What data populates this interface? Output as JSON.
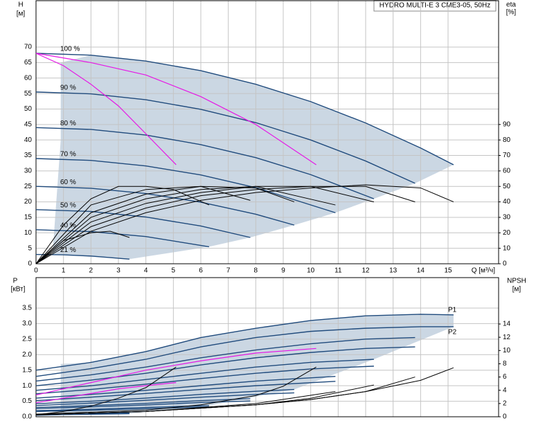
{
  "chart_data": [
    {
      "type": "line",
      "title": "HYDRO MULTI-E 3 CME3-05, 50Hz",
      "ylabel": "H",
      "yunit": "[м]",
      "y2label": "eta",
      "y2unit": "[%]",
      "xlabel": "Q [м³/ч]",
      "xlim": [
        0,
        16.84
      ],
      "ylim": [
        0,
        85
      ],
      "y2lim": [
        0,
        170
      ],
      "xticks": [
        0,
        1,
        2,
        3,
        4,
        5,
        6,
        7,
        8,
        9,
        10,
        11,
        12,
        13,
        14,
        15
      ],
      "yticks": [
        0,
        5,
        10,
        15,
        20,
        25,
        30,
        35,
        40,
        45,
        50,
        55,
        60,
        65,
        70
      ],
      "y2ticks": [
        0,
        10,
        20,
        30,
        40,
        50,
        60,
        70,
        80,
        90
      ],
      "grid": true,
      "area": {
        "color": "#cbd7e3",
        "x": [
          0.9,
          2,
          4,
          6,
          8,
          10,
          12,
          14,
          15.2,
          13.8,
          12.3,
          10.9,
          9.4,
          7.8,
          6.3,
          3.4,
          0.6,
          0.9
        ],
        "values": [
          65,
          67.4,
          65.5,
          62.4,
          58,
          52.4,
          45.5,
          37.4,
          32,
          26,
          21,
          16.5,
          12.5,
          8.5,
          5.5,
          1.5,
          3,
          40
        ]
      },
      "series": [
        {
          "name": "100 %",
          "label_pos": "start",
          "color": "#1f4a7c",
          "x": [
            0,
            2,
            4,
            6,
            8,
            10,
            12,
            14,
            15.2
          ],
          "values": [
            68,
            67.4,
            65.5,
            62.4,
            58,
            52.4,
            45.5,
            37.4,
            32
          ]
        },
        {
          "name": "90 %",
          "label_pos": "start",
          "color": "#1f4a7c",
          "x": [
            0,
            2,
            4,
            6,
            8,
            10,
            12,
            13.8
          ],
          "values": [
            55.5,
            54.9,
            53,
            49.9,
            45.6,
            40,
            33.2,
            26
          ]
        },
        {
          "name": "80 %",
          "label_pos": "start",
          "color": "#1f4a7c",
          "x": [
            0,
            2,
            4,
            6,
            8,
            10,
            12.3
          ],
          "values": [
            44,
            43.4,
            41.6,
            38.5,
            34.3,
            28.8,
            21
          ]
        },
        {
          "name": "70 %",
          "label_pos": "start",
          "color": "#1f4a7c",
          "x": [
            0,
            2,
            4,
            6,
            8,
            10.9
          ],
          "values": [
            34,
            33.4,
            31.6,
            28.7,
            24.6,
            16.5
          ]
        },
        {
          "name": "60 %",
          "label_pos": "start",
          "color": "#1f4a7c",
          "x": [
            0,
            2,
            4,
            6,
            8,
            9.4
          ],
          "values": [
            25,
            24.4,
            22.7,
            19.9,
            16,
            12.5
          ]
        },
        {
          "name": "50 %",
          "label_pos": "start",
          "color": "#1f4a7c",
          "x": [
            0,
            2,
            4,
            6,
            7.8
          ],
          "values": [
            17.5,
            16.9,
            15.1,
            12.2,
            8.5
          ]
        },
        {
          "name": "40 %",
          "label_pos": "start",
          "color": "#1f4a7c",
          "x": [
            0,
            2,
            4,
            6.3
          ],
          "values": [
            11,
            10.4,
            8.8,
            5.5
          ]
        },
        {
          "name": "21 %",
          "label_pos": "start",
          "color": "#1f4a7c",
          "x": [
            0,
            1,
            2,
            3.4
          ],
          "values": [
            3,
            2.9,
            2.5,
            1.5
          ]
        },
        {
          "axis": "y2",
          "color": "#000000",
          "x": [
            0,
            2,
            4,
            6,
            8,
            10,
            12,
            14,
            15.2
          ],
          "values": [
            0,
            21,
            33,
            41,
            46,
            49,
            51,
            49,
            40
          ]
        },
        {
          "axis": "y2",
          "color": "#000000",
          "x": [
            0,
            2,
            4,
            6,
            8,
            10,
            12,
            13.8
          ],
          "values": [
            0,
            24,
            36,
            44,
            48,
            50,
            50,
            40
          ]
        },
        {
          "axis": "y2",
          "color": "#000000",
          "x": [
            0,
            2,
            4,
            6,
            8,
            10,
            12.3
          ],
          "values": [
            0,
            27,
            39,
            46,
            50,
            50,
            40
          ]
        },
        {
          "axis": "y2",
          "color": "#000000",
          "x": [
            0,
            2,
            4,
            6,
            8,
            10.9
          ],
          "values": [
            0,
            30,
            42,
            48,
            50,
            38
          ]
        },
        {
          "axis": "y2",
          "color": "#000000",
          "x": [
            0,
            2,
            4,
            6,
            8,
            9.4
          ],
          "values": [
            0,
            33,
            45,
            50,
            49,
            40
          ]
        },
        {
          "axis": "y2",
          "color": "#000000",
          "x": [
            0,
            2,
            4,
            6,
            7.8
          ],
          "values": [
            0,
            38,
            48,
            50,
            41
          ]
        },
        {
          "axis": "y2",
          "color": "#000000",
          "x": [
            0,
            1,
            2,
            3,
            4,
            5,
            6.3
          ],
          "values": [
            0,
            25,
            42,
            50,
            50,
            48,
            38
          ]
        },
        {
          "axis": "y2",
          "color": "#000000",
          "x": [
            0,
            1,
            2,
            2.7,
            3.4
          ],
          "values": [
            0,
            15,
            20,
            21,
            17
          ]
        },
        {
          "color": "#e617e6",
          "x": [
            0,
            1,
            2,
            3,
            4,
            5.1
          ],
          "values": [
            68,
            64,
            58,
            51,
            42,
            32
          ]
        },
        {
          "color": "#e617e6",
          "x": [
            0,
            2,
            4,
            6,
            8,
            10.2
          ],
          "values": [
            68,
            65,
            61,
            54,
            45,
            32
          ]
        }
      ]
    },
    {
      "type": "line",
      "ylabel": "P",
      "yunit": "[кВт]",
      "y2label": "NPSH",
      "y2unit": "[м]",
      "xlim": [
        0,
        16.84
      ],
      "ylim": [
        0,
        4.48
      ],
      "y2lim": [
        0,
        21
      ],
      "yticks": [
        {
          "value": 0,
          "label": "0.0"
        },
        0.5,
        {
          "value": 1,
          "label": "1.0"
        },
        1.5,
        {
          "value": 2,
          "label": "2.0"
        },
        2.5,
        {
          "value": 3,
          "label": "3.0"
        },
        3.5
      ],
      "y2ticks": [
        0,
        2,
        4,
        6,
        8,
        10,
        12,
        14
      ],
      "grid": true,
      "area": {
        "color": "#cbd7e3",
        "x": [
          0.9,
          2,
          4,
          6,
          8,
          10,
          12,
          14,
          15.2,
          15.2,
          12.3,
          9.4,
          6.3,
          3.4,
          0.9
        ],
        "values": [
          1.7,
          1.75,
          2.1,
          2.55,
          2.85,
          3.1,
          3.25,
          3.3,
          3.28,
          2.9,
          1.85,
          0.88,
          0.36,
          0.1,
          0.1
        ]
      },
      "series": [
        {
          "name": "P1",
          "label_pos": "above",
          "color": "#1f4a7c",
          "x": [
            0,
            2,
            4,
            6,
            8,
            10,
            12,
            14,
            15.2
          ],
          "values": [
            1.5,
            1.75,
            2.1,
            2.55,
            2.85,
            3.1,
            3.25,
            3.3,
            3.28
          ]
        },
        {
          "color": "#1f4a7c",
          "x": [
            0,
            2,
            4,
            6,
            8,
            10,
            12,
            13.8
          ],
          "values": [
            1.15,
            1.35,
            1.6,
            1.9,
            2.15,
            2.35,
            2.5,
            2.55
          ]
        },
        {
          "color": "#1f4a7c",
          "x": [
            0,
            2,
            4,
            6,
            8,
            10,
            12.3
          ],
          "values": [
            0.85,
            1,
            1.2,
            1.4,
            1.6,
            1.75,
            1.85
          ]
        },
        {
          "color": "#1f4a7c",
          "x": [
            0,
            2,
            4,
            6,
            8,
            10.9
          ],
          "values": [
            0.6,
            0.72,
            0.85,
            1,
            1.15,
            1.3
          ]
        },
        {
          "color": "#1f4a7c",
          "x": [
            0,
            2,
            4,
            6,
            8,
            9.4
          ],
          "values": [
            0.42,
            0.5,
            0.6,
            0.72,
            0.82,
            0.88
          ]
        },
        {
          "color": "#1f4a7c",
          "x": [
            0,
            2,
            4,
            6,
            7.8
          ],
          "values": [
            0.3,
            0.36,
            0.43,
            0.52,
            0.58
          ]
        },
        {
          "color": "#1f4a7c",
          "x": [
            0,
            2,
            4,
            6.3
          ],
          "values": [
            0.2,
            0.24,
            0.3,
            0.36
          ]
        },
        {
          "color": "#1f4a7c",
          "x": [
            0,
            1,
            2,
            3.4
          ],
          "values": [
            0.07,
            0.08,
            0.1,
            0.12
          ]
        },
        {
          "name": "P2",
          "label_pos": "below",
          "color": "#1f4a7c",
          "x": [
            0,
            2,
            4,
            6,
            8,
            10,
            12,
            14,
            15.2
          ],
          "values": [
            1.3,
            1.55,
            1.85,
            2.25,
            2.55,
            2.75,
            2.85,
            2.9,
            2.9
          ]
        },
        {
          "color": "#1f4a7c",
          "x": [
            0,
            2,
            4,
            6,
            8,
            10,
            12,
            13.8
          ],
          "values": [
            1,
            1.18,
            1.4,
            1.67,
            1.9,
            2.07,
            2.2,
            2.25
          ]
        },
        {
          "color": "#1f4a7c",
          "x": [
            0,
            2,
            4,
            6,
            8,
            10,
            12.3
          ],
          "values": [
            0.74,
            0.88,
            1.05,
            1.23,
            1.4,
            1.54,
            1.63
          ]
        },
        {
          "color": "#1f4a7c",
          "x": [
            0,
            2,
            4,
            6,
            8,
            10.9
          ],
          "values": [
            0.52,
            0.63,
            0.75,
            0.88,
            1,
            1.14
          ]
        },
        {
          "color": "#1f4a7c",
          "x": [
            0,
            2,
            4,
            6,
            8,
            9.4
          ],
          "values": [
            0.36,
            0.44,
            0.53,
            0.63,
            0.72,
            0.77
          ]
        },
        {
          "color": "#1f4a7c",
          "x": [
            0,
            2,
            4,
            6,
            7.8
          ],
          "values": [
            0.26,
            0.32,
            0.38,
            0.46,
            0.51
          ]
        },
        {
          "color": "#1f4a7c",
          "x": [
            0,
            2,
            4,
            6.3
          ],
          "values": [
            0.17,
            0.21,
            0.26,
            0.32
          ]
        },
        {
          "color": "#1f4a7c",
          "x": [
            0,
            1,
            2,
            3.4
          ],
          "values": [
            0.05,
            0.07,
            0.08,
            0.1
          ]
        },
        {
          "color": "#e617e6",
          "x": [
            0,
            1,
            2,
            3,
            4,
            5.1
          ],
          "values": [
            0.45,
            0.6,
            0.75,
            0.9,
            1,
            1.1
          ]
        },
        {
          "color": "#e617e6",
          "x": [
            0,
            2,
            4,
            6,
            8,
            10.2
          ],
          "values": [
            0.7,
            1.1,
            1.5,
            1.8,
            2.05,
            2.2
          ]
        },
        {
          "axis": "y2",
          "color": "#000000",
          "x": [
            0,
            4,
            8,
            10,
            12,
            14,
            15.2
          ],
          "values": [
            0.3,
            0.8,
            1.8,
            2.6,
            3.8,
            5.5,
            7.4
          ]
        },
        {
          "axis": "y2",
          "color": "#000000",
          "x": [
            0,
            4,
            8,
            10,
            12,
            13.8
          ],
          "values": [
            0.3,
            0.8,
            1.8,
            2.6,
            3.8,
            6
          ]
        },
        {
          "axis": "y2",
          "color": "#000000",
          "x": [
            0,
            4,
            8,
            10,
            12.3
          ],
          "values": [
            0.3,
            0.8,
            1.8,
            2.8,
            4.8
          ]
        },
        {
          "axis": "y2",
          "color": "#000000",
          "x": [
            0,
            4,
            8,
            10.9
          ],
          "values": [
            0.3,
            0.8,
            2,
            3.8
          ]
        },
        {
          "axis": "y2",
          "color": "#000000",
          "x": [
            0,
            4,
            6,
            8,
            9,
            10.2
          ],
          "values": [
            0.4,
            1,
            1.8,
            3.2,
            4.6,
            7.5
          ]
        },
        {
          "axis": "y2",
          "color": "#000000",
          "x": [
            0,
            1,
            2,
            3,
            4,
            5.1
          ],
          "values": [
            0.3,
            0.8,
            1.6,
            2.8,
            4.4,
            7.5
          ]
        }
      ]
    }
  ]
}
